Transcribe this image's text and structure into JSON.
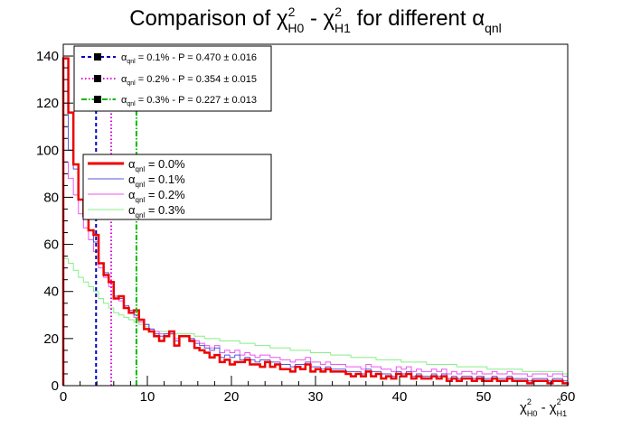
{
  "title": {
    "main": "Comparison of ",
    "chi": "χ",
    "sup": "2",
    "sub0": "H0",
    "dash": " - ",
    "sub1": "H1",
    "tail": "  for different ",
    "alpha": "α",
    "alpha_sub": "qnl"
  },
  "xaxis_label": {
    "chi": "χ",
    "sup": "2",
    "sub0": "H0",
    "dash": " - ",
    "sub1": "H1"
  },
  "colors": {
    "a00": "#ee0000",
    "a01": "#5555dd",
    "a02": "#ee55ee",
    "a03": "#88ee88",
    "l01": "#0000bb",
    "l02": "#dd00dd",
    "l03": "#00bb00"
  },
  "pvalue_legend": [
    {
      "alpha": "α",
      "sub": "qnl",
      "text": " = 0.1% - P = 0.470 ± 0.016"
    },
    {
      "alpha": "α",
      "sub": "qnl",
      "text": " = 0.2% - P = 0.354 ± 0.015"
    },
    {
      "alpha": "α",
      "sub": "qnl",
      "text": " = 0.3% - P = 0.227 ± 0.013"
    }
  ],
  "hist_legend": [
    {
      "alpha": "α",
      "sub": "qnl",
      "text": " = 0.0%"
    },
    {
      "alpha": "α",
      "sub": "qnl",
      "text": " = 0.1%"
    },
    {
      "alpha": "α",
      "sub": "qnl",
      "text": " = 0.2%"
    },
    {
      "alpha": "α",
      "sub": "qnl",
      "text": " = 0.3%"
    }
  ],
  "chart_data": {
    "type": "histogram",
    "xlim": [
      0,
      60
    ],
    "ylim": [
      0,
      145
    ],
    "bin_width": 0.6,
    "xticks": [
      0,
      10,
      20,
      30,
      40,
      50,
      60
    ],
    "yticks": [
      0,
      20,
      40,
      60,
      80,
      100,
      120,
      140
    ],
    "grid": false,
    "legend_position": "top-left",
    "series": [
      {
        "name": "α_qnl = 0.0%",
        "key": "a00",
        "values": [
          139,
          116,
          94,
          79,
          72,
          66,
          64,
          52,
          47,
          44,
          37,
          38,
          33,
          31,
          32,
          28,
          24,
          23,
          21,
          19,
          21,
          23,
          17,
          21,
          21,
          19,
          16,
          15,
          14,
          12,
          13,
          10,
          11,
          9,
          10,
          10,
          11,
          9,
          9,
          8,
          10,
          8,
          9,
          7,
          7,
          6,
          8,
          7,
          9,
          6,
          7,
          6,
          7,
          6,
          6,
          6,
          5,
          4,
          5,
          4,
          6,
          4,
          5,
          3,
          4,
          3,
          5,
          4,
          5,
          3,
          4,
          3,
          3,
          4,
          3,
          4,
          2,
          3,
          2,
          3,
          3,
          2,
          3,
          2,
          2,
          3,
          2,
          2,
          3,
          2,
          2,
          2,
          1,
          2,
          2,
          2,
          1,
          2,
          2,
          1
        ]
      },
      {
        "name": "α_qnl = 0.1%",
        "key": "a01",
        "values": [
          120,
          100,
          92,
          79,
          72,
          66,
          61,
          52,
          48,
          44,
          38,
          37,
          34,
          32,
          30,
          28,
          26,
          24,
          22,
          21,
          22,
          22,
          19,
          21,
          21,
          20,
          18,
          17,
          16,
          15,
          16,
          12,
          13,
          12,
          13,
          11,
          12,
          11,
          10,
          11,
          11,
          10,
          10,
          9,
          9,
          8,
          9,
          9,
          10,
          8,
          8,
          7,
          8,
          7,
          7,
          7,
          6,
          6,
          6,
          5,
          7,
          6,
          6,
          5,
          5,
          4,
          6,
          5,
          6,
          4,
          5,
          4,
          4,
          5,
          4,
          5,
          3,
          4,
          3,
          4,
          4,
          3,
          4,
          3,
          3,
          4,
          3,
          3,
          4,
          3,
          3,
          3,
          2,
          3,
          3,
          3,
          2,
          3,
          3,
          2
        ]
      },
      {
        "name": "α_qnl = 0.2%",
        "key": "a02",
        "values": [
          95,
          88,
          81,
          73,
          67,
          62,
          57,
          50,
          46,
          42,
          38,
          36,
          33,
          31,
          29,
          27,
          26,
          24,
          23,
          22,
          22,
          22,
          20,
          21,
          21,
          20,
          19,
          18,
          17,
          16,
          17,
          14,
          15,
          14,
          15,
          13,
          14,
          13,
          12,
          13,
          13,
          12,
          12,
          11,
          11,
          10,
          11,
          11,
          12,
          10,
          10,
          9,
          10,
          9,
          9,
          9,
          8,
          8,
          8,
          7,
          9,
          8,
          8,
          7,
          7,
          6,
          8,
          7,
          8,
          6,
          7,
          6,
          6,
          7,
          6,
          7,
          5,
          6,
          5,
          6,
          6,
          5,
          6,
          5,
          5,
          6,
          5,
          5,
          6,
          5,
          5,
          5,
          4,
          5,
          5,
          5,
          4,
          5,
          5,
          4
        ]
      },
      {
        "name": "α_qnl = 0.3%",
        "key": "a03",
        "values": [
          54,
          52,
          49,
          46,
          44,
          42,
          40,
          37,
          35,
          33,
          31,
          30,
          29,
          28,
          27,
          26,
          25,
          24,
          23,
          23,
          23,
          23,
          22,
          22,
          22,
          22,
          21,
          21,
          20,
          20,
          20,
          19,
          19,
          19,
          19,
          18,
          18,
          18,
          17,
          17,
          17,
          16,
          16,
          16,
          16,
          15,
          15,
          15,
          15,
          14,
          14,
          14,
          14,
          13,
          13,
          13,
          13,
          12,
          12,
          12,
          12,
          12,
          11,
          11,
          11,
          11,
          11,
          10,
          10,
          10,
          10,
          10,
          9,
          9,
          9,
          9,
          9,
          9,
          8,
          8,
          8,
          8,
          8,
          8,
          7,
          7,
          7,
          7,
          7,
          7,
          7,
          6,
          6,
          6,
          6,
          6,
          6,
          6,
          6,
          5
        ]
      }
    ],
    "vertical_lines": [
      {
        "x": 3.9,
        "key": "l01",
        "dash": "dashed"
      },
      {
        "x": 5.7,
        "key": "l02",
        "dash": "dotted"
      },
      {
        "x": 8.7,
        "key": "l03",
        "dash": "dashdot"
      }
    ]
  }
}
